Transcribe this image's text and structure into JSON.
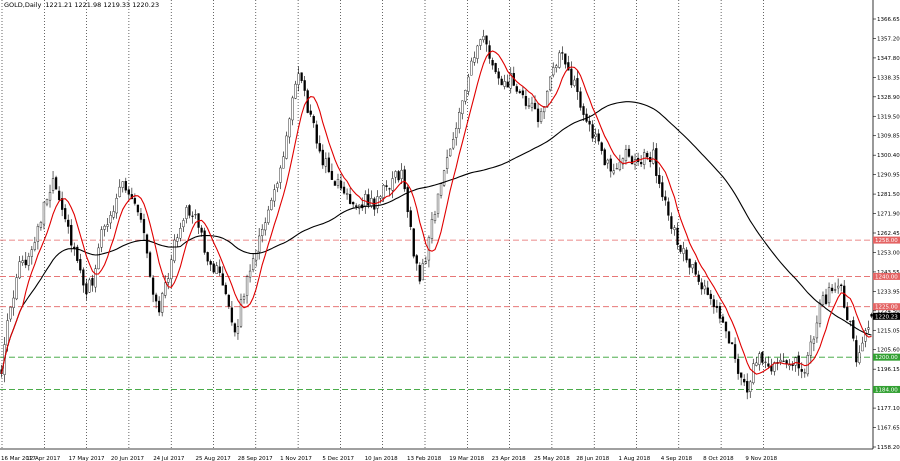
{
  "header": {
    "symbol_info": "GOLD,Daily  1221.21 1221.98 1219.33 1220.23"
  },
  "chart_data": {
    "type": "candlestick",
    "symbol": "GOLD",
    "timeframe": "Daily",
    "ohlc": {
      "open": 1221.21,
      "high": 1221.98,
      "low": 1219.33,
      "close": 1220.23
    },
    "ylim": [
      1154.5,
      1372.0
    ],
    "y_ticks": [
      "1366.65",
      "1357.20",
      "1347.80",
      "1338.35",
      "1328.90",
      "1319.50",
      "1309.85",
      "1300.40",
      "1290.95",
      "1281.50",
      "1271.90",
      "1262.45",
      "1253.00",
      "1243.55",
      "1233.95",
      "1224.50",
      "1215.05",
      "1205.60",
      "1196.15",
      "1186.55",
      "1177.10",
      "1167.65",
      "1158.20"
    ],
    "x_ticks": [
      "16 Mar 2017",
      "12 Apr 2017",
      "17 May 2017",
      "20 Jun 2017",
      "24 Jul 2017",
      "25 Aug 2017",
      "28 Sep 2017",
      "1 Nov 2017",
      "5 Dec 2017",
      "10 Jan 2018",
      "13 Feb 2018",
      "19 Mar 2018",
      "23 Apr 2018",
      "25 May 2018",
      "28 Jun 2018",
      "1 Aug 2018",
      "4 Sep 2018",
      "8 Oct 2018",
      "9 Nov 2018"
    ],
    "horizontal_levels": [
      {
        "price": 1258.0,
        "label": "1258.00",
        "color": "#e46464",
        "style": "dashed"
      },
      {
        "price": 1240.0,
        "label": "1240.00",
        "color": "#e46464",
        "style": "dashed"
      },
      {
        "price": 1225.0,
        "label": "1225.00",
        "color": "#e46464",
        "style": "dashed"
      },
      {
        "price": 1200.0,
        "label": "1200.00",
        "color": "#32a032",
        "style": "dashed"
      },
      {
        "price": 1184.0,
        "label": "1184.00",
        "color": "#32a032",
        "style": "dashed"
      }
    ],
    "current_price": {
      "price": 1220.23,
      "label": "1220.23"
    },
    "series": [
      {
        "name": "",
        "kind": "moving-average-fast",
        "color": "#e00000"
      },
      {
        "name": "",
        "kind": "moving-average-slow",
        "color": "#000000"
      }
    ],
    "path_keypoints": [
      [
        0,
        1195
      ],
      [
        2,
        1215
      ],
      [
        6,
        1245
      ],
      [
        9,
        1250
      ],
      [
        12,
        1265
      ],
      [
        15,
        1278
      ],
      [
        17,
        1290
      ],
      [
        20,
        1275
      ],
      [
        23,
        1258
      ],
      [
        26,
        1240
      ],
      [
        28,
        1232
      ],
      [
        30,
        1238
      ],
      [
        33,
        1260
      ],
      [
        37,
        1275
      ],
      [
        40,
        1288
      ],
      [
        43,
        1278
      ],
      [
        46,
        1270
      ],
      [
        48,
        1250
      ],
      [
        50,
        1232
      ],
      [
        52,
        1225
      ],
      [
        54,
        1235
      ],
      [
        57,
        1255
      ],
      [
        61,
        1275
      ],
      [
        65,
        1265
      ],
      [
        68,
        1250
      ],
      [
        72,
        1240
      ],
      [
        75,
        1222
      ],
      [
        77,
        1212
      ],
      [
        79,
        1225
      ],
      [
        82,
        1245
      ],
      [
        86,
        1265
      ],
      [
        90,
        1280
      ],
      [
        93,
        1300
      ],
      [
        96,
        1325
      ],
      [
        98,
        1342
      ],
      [
        100,
        1330
      ],
      [
        102,
        1318
      ],
      [
        105,
        1302
      ],
      [
        108,
        1292
      ],
      [
        111,
        1285
      ],
      [
        114,
        1280
      ],
      [
        117,
        1276
      ],
      [
        120,
        1278
      ],
      [
        123,
        1276
      ],
      [
        126,
        1282
      ],
      [
        129,
        1288
      ],
      [
        132,
        1292
      ],
      [
        134,
        1272
      ],
      [
        136,
        1252
      ],
      [
        138,
        1240
      ],
      [
        140,
        1250
      ],
      [
        142,
        1268
      ],
      [
        145,
        1285
      ],
      [
        148,
        1305
      ],
      [
        151,
        1322
      ],
      [
        154,
        1340
      ],
      [
        157,
        1352
      ],
      [
        159,
        1358
      ],
      [
        162,
        1345
      ],
      [
        165,
        1332
      ],
      [
        168,
        1338
      ],
      [
        171,
        1328
      ],
      [
        174,
        1325
      ],
      [
        177,
        1318
      ],
      [
        180,
        1332
      ],
      [
        183,
        1345
      ],
      [
        185,
        1350
      ],
      [
        187,
        1342
      ],
      [
        190,
        1330
      ],
      [
        193,
        1318
      ],
      [
        196,
        1308
      ],
      [
        198,
        1300
      ],
      [
        201,
        1292
      ],
      [
        204,
        1298
      ],
      [
        207,
        1300
      ],
      [
        210,
        1296
      ],
      [
        213,
        1300
      ],
      [
        215,
        1300
      ],
      [
        217,
        1285
      ],
      [
        220,
        1270
      ],
      [
        223,
        1258
      ],
      [
        226,
        1248
      ],
      [
        229,
        1240
      ],
      [
        232,
        1232
      ],
      [
        235,
        1225
      ],
      [
        238,
        1218
      ],
      [
        241,
        1205
      ],
      [
        244,
        1190
      ],
      [
        246,
        1180
      ],
      [
        248,
        1198
      ],
      [
        251,
        1200
      ],
      [
        254,
        1196
      ],
      [
        257,
        1200
      ],
      [
        260,
        1198
      ],
      [
        263,
        1196
      ],
      [
        265,
        1190
      ],
      [
        267,
        1205
      ],
      [
        270,
        1225
      ],
      [
        273,
        1232
      ],
      [
        276,
        1238
      ],
      [
        278,
        1228
      ],
      [
        280,
        1215
      ],
      [
        282,
        1200
      ],
      [
        284,
        1210
      ],
      [
        287,
        1220
      ]
    ]
  }
}
